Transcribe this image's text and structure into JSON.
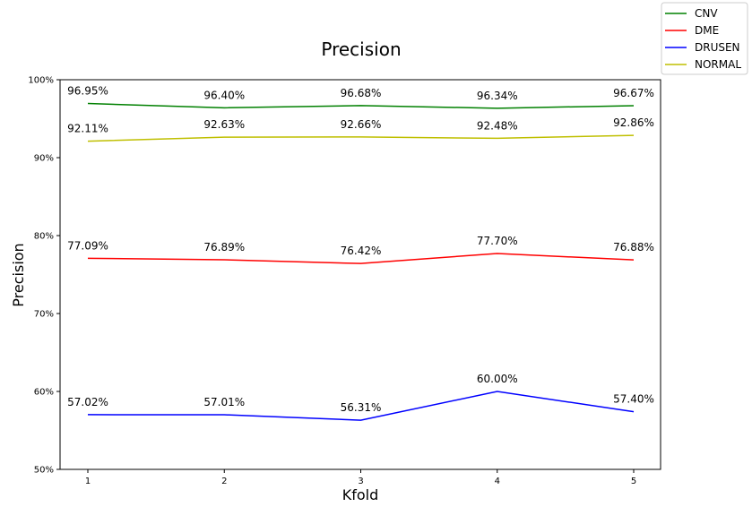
{
  "chart_data": {
    "type": "line",
    "title": "Precision",
    "xlabel": "Kfold",
    "ylabel": "Precision",
    "x": [
      1,
      2,
      3,
      4,
      5
    ],
    "x_tick_labels": [
      "1",
      "2",
      "3",
      "4",
      "5"
    ],
    "ylim": [
      50,
      100
    ],
    "y_tick_labels": [
      "50%",
      "60%",
      "70%",
      "80%",
      "90%",
      "100%"
    ],
    "grid": false,
    "legend_placement": "top-right",
    "series": [
      {
        "name": "CNV",
        "color": "#008000",
        "values": [
          96.95,
          96.4,
          96.68,
          96.34,
          96.67
        ],
        "labels": [
          "96.95%",
          "96.40%",
          "96.68%",
          "96.34%",
          "96.67%"
        ]
      },
      {
        "name": "DME",
        "color": "#ff0000",
        "values": [
          77.09,
          76.89,
          76.42,
          77.7,
          76.88
        ],
        "labels": [
          "77.09%",
          "76.89%",
          "76.42%",
          "77.70%",
          "76.88%"
        ]
      },
      {
        "name": "DRUSEN",
        "color": "#0000ff",
        "values": [
          57.02,
          57.01,
          56.31,
          60.0,
          57.4
        ],
        "labels": [
          "57.02%",
          "57.01%",
          "56.31%",
          "60.00%",
          "57.40%"
        ]
      },
      {
        "name": "NORMAL",
        "color": "#bfbf00",
        "values": [
          92.11,
          92.63,
          92.66,
          92.48,
          92.86
        ],
        "labels": [
          "92.11%",
          "92.63%",
          "92.66%",
          "92.48%",
          "92.86%"
        ]
      }
    ]
  }
}
